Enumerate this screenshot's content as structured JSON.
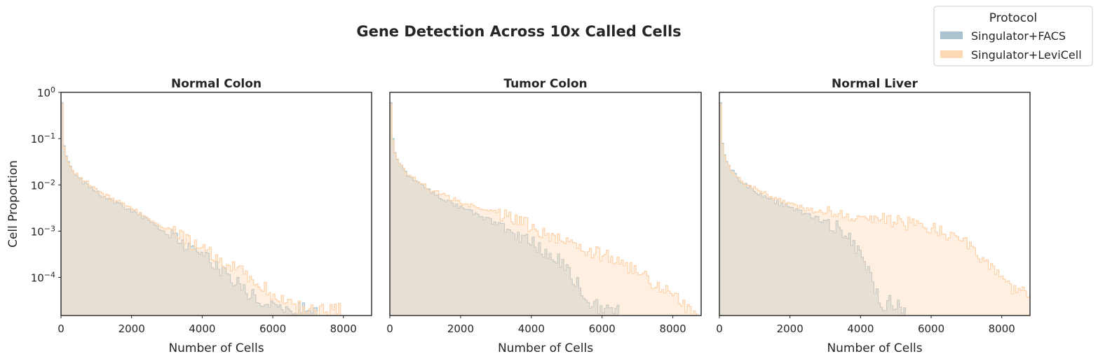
{
  "title": "Gene Detection Across 10x Called Cells",
  "legend": {
    "title": "Protocol",
    "placement": "top-right",
    "entries": [
      {
        "label": "Singulator+FACS",
        "color": "#a9c3cf"
      },
      {
        "label": "Singulator+LeviCell",
        "color": "#fdd8b5"
      }
    ]
  },
  "chart_data": [
    {
      "type": "histogram",
      "title": "Normal Colon",
      "xlabel": "Number of Cells",
      "ylabel": "Cell Proportion",
      "xlim": [
        0,
        8800
      ],
      "ylim": [
        1.5e-05,
        1
      ],
      "yscale": "log",
      "xticks": [
        0,
        2000,
        4000,
        6000,
        8000
      ],
      "yticks": [
        {
          "value": 1,
          "exp": "0"
        },
        {
          "value": 0.1,
          "exp": "−1"
        },
        {
          "value": 0.01,
          "exp": "−2"
        },
        {
          "value": 0.001,
          "exp": "−3"
        },
        {
          "value": 0.0001,
          "exp": "−4"
        }
      ],
      "grid": false,
      "bin_width": 60,
      "series": [
        {
          "name": "Singulator+FACS",
          "points": [
            [
              0,
              0.6
            ],
            [
              60,
              0.07
            ],
            [
              120,
              0.042
            ],
            [
              180,
              0.032
            ],
            [
              300,
              0.02
            ],
            [
              500,
              0.013
            ],
            [
              800,
              0.009
            ],
            [
              1200,
              0.0055
            ],
            [
              1600,
              0.0038
            ],
            [
              2000,
              0.0026
            ],
            [
              2400,
              0.0018
            ],
            [
              2800,
              0.0011
            ],
            [
              3200,
              0.0007
            ],
            [
              3600,
              0.00045
            ],
            [
              4000,
              0.00028
            ],
            [
              4400,
              0.00018
            ],
            [
              4700,
              0.00011
            ],
            [
              4800,
              6e-05
            ],
            [
              5000,
              8e-05
            ],
            [
              5200,
              5e-05
            ],
            [
              5400,
              4e-05
            ],
            [
              5600,
              3e-05
            ],
            [
              5800,
              3e-05
            ],
            [
              6000,
              2e-05
            ],
            [
              6200,
              2e-05
            ],
            [
              6600,
              2e-05
            ],
            [
              7200,
              2e-05
            ]
          ]
        },
        {
          "name": "Singulator+LeviCell",
          "points": [
            [
              0,
              0.55
            ],
            [
              60,
              0.065
            ],
            [
              120,
              0.04
            ],
            [
              180,
              0.03
            ],
            [
              300,
              0.02
            ],
            [
              500,
              0.014
            ],
            [
              800,
              0.01
            ],
            [
              1200,
              0.006
            ],
            [
              1600,
              0.0042
            ],
            [
              2000,
              0.003
            ],
            [
              2400,
              0.0021
            ],
            [
              2800,
              0.0014
            ],
            [
              3200,
              0.0009
            ],
            [
              3600,
              0.0006
            ],
            [
              4000,
              0.0004
            ],
            [
              4400,
              0.00027
            ],
            [
              4800,
              0.00018
            ],
            [
              5200,
              0.00012
            ],
            [
              5600,
              7e-05
            ],
            [
              6000,
              4e-05
            ],
            [
              6400,
              3e-05
            ],
            [
              6800,
              2e-05
            ],
            [
              7400,
              2e-05
            ],
            [
              7900,
              2e-05
            ]
          ]
        }
      ]
    },
    {
      "type": "histogram",
      "title": "Tumor Colon",
      "xlabel": "Number of Cells",
      "ylabel": "",
      "xlim": [
        0,
        8800
      ],
      "ylim": [
        1.5e-05,
        1
      ],
      "yscale": "log",
      "xticks": [
        0,
        2000,
        4000,
        6000,
        8000
      ],
      "yticks": [],
      "grid": false,
      "bin_width": 60,
      "series": [
        {
          "name": "Singulator+FACS",
          "points": [
            [
              0,
              0.6
            ],
            [
              60,
              0.1
            ],
            [
              120,
              0.05
            ],
            [
              180,
              0.036
            ],
            [
              300,
              0.024
            ],
            [
              500,
              0.015
            ],
            [
              800,
              0.01
            ],
            [
              1200,
              0.0065
            ],
            [
              1600,
              0.0045
            ],
            [
              2000,
              0.0032
            ],
            [
              2400,
              0.0024
            ],
            [
              2800,
              0.0017
            ],
            [
              3200,
              0.0012
            ],
            [
              3600,
              0.0008
            ],
            [
              4000,
              0.00055
            ],
            [
              4400,
              0.00035
            ],
            [
              4800,
              0.00022
            ],
            [
              5000,
              0.00014
            ],
            [
              5200,
              9e-05
            ],
            [
              5400,
              5e-05
            ],
            [
              5600,
              3e-05
            ],
            [
              6000,
              2e-05
            ],
            [
              6400,
              2e-05
            ]
          ]
        },
        {
          "name": "Singulator+LeviCell",
          "points": [
            [
              0,
              0.55
            ],
            [
              60,
              0.09
            ],
            [
              120,
              0.048
            ],
            [
              180,
              0.035
            ],
            [
              300,
              0.024
            ],
            [
              500,
              0.016
            ],
            [
              800,
              0.011
            ],
            [
              1200,
              0.0075
            ],
            [
              1600,
              0.0055
            ],
            [
              2000,
              0.0042
            ],
            [
              2400,
              0.0034
            ],
            [
              2800,
              0.0027
            ],
            [
              3200,
              0.0022
            ],
            [
              3600,
              0.0017
            ],
            [
              4000,
              0.0012
            ],
            [
              4400,
              0.0009
            ],
            [
              4800,
              0.0007
            ],
            [
              5200,
              0.0005
            ],
            [
              5600,
              0.0004
            ],
            [
              6000,
              0.0003
            ],
            [
              6400,
              0.00022
            ],
            [
              6800,
              0.00015
            ],
            [
              7200,
              0.0001
            ],
            [
              7600,
              6e-05
            ],
            [
              8000,
              4e-05
            ],
            [
              8400,
              2e-05
            ],
            [
              8600,
              2e-05
            ]
          ]
        }
      ]
    },
    {
      "type": "histogram",
      "title": "Normal Liver",
      "xlabel": "Number of Cells",
      "ylabel": "",
      "xlim": [
        0,
        8800
      ],
      "ylim": [
        1.5e-05,
        1
      ],
      "yscale": "log",
      "xticks": [
        0,
        2000,
        4000,
        6000,
        8000
      ],
      "yticks": [],
      "grid": false,
      "bin_width": 60,
      "series": [
        {
          "name": "Singulator+FACS",
          "points": [
            [
              0,
              0.6
            ],
            [
              60,
              0.08
            ],
            [
              120,
              0.045
            ],
            [
              180,
              0.032
            ],
            [
              300,
              0.022
            ],
            [
              500,
              0.014
            ],
            [
              800,
              0.009
            ],
            [
              1200,
              0.006
            ],
            [
              1600,
              0.0042
            ],
            [
              2000,
              0.0032
            ],
            [
              2400,
              0.0024
            ],
            [
              2800,
              0.0018
            ],
            [
              3000,
              0.0016
            ],
            [
              3200,
              0.0013
            ],
            [
              3400,
              0.0011
            ],
            [
              3600,
              0.0008
            ],
            [
              3800,
              0.0005
            ],
            [
              4000,
              0.0003
            ],
            [
              4200,
              0.00015
            ],
            [
              4400,
              5e-05
            ],
            [
              4600,
              2e-05
            ],
            [
              4800,
              3e-05
            ],
            [
              5200,
              2e-05
            ]
          ]
        },
        {
          "name": "Singulator+LeviCell",
          "points": [
            [
              0,
              0.55
            ],
            [
              60,
              0.075
            ],
            [
              120,
              0.043
            ],
            [
              180,
              0.031
            ],
            [
              300,
              0.022
            ],
            [
              500,
              0.014
            ],
            [
              800,
              0.0095
            ],
            [
              1200,
              0.007
            ],
            [
              1600,
              0.005
            ],
            [
              2000,
              0.0038
            ],
            [
              2400,
              0.003
            ],
            [
              2800,
              0.0026
            ],
            [
              3200,
              0.0024
            ],
            [
              3600,
              0.0022
            ],
            [
              4000,
              0.002
            ],
            [
              4400,
              0.0019
            ],
            [
              4800,
              0.0017
            ],
            [
              5200,
              0.0015
            ],
            [
              5600,
              0.0013
            ],
            [
              6000,
              0.0011
            ],
            [
              6400,
              0.0009
            ],
            [
              6800,
              0.0007
            ],
            [
              7200,
              0.0004
            ],
            [
              7600,
              0.0002
            ],
            [
              8000,
              8e-05
            ],
            [
              8400,
              5e-05
            ],
            [
              8800,
              4e-05
            ]
          ]
        }
      ]
    }
  ]
}
